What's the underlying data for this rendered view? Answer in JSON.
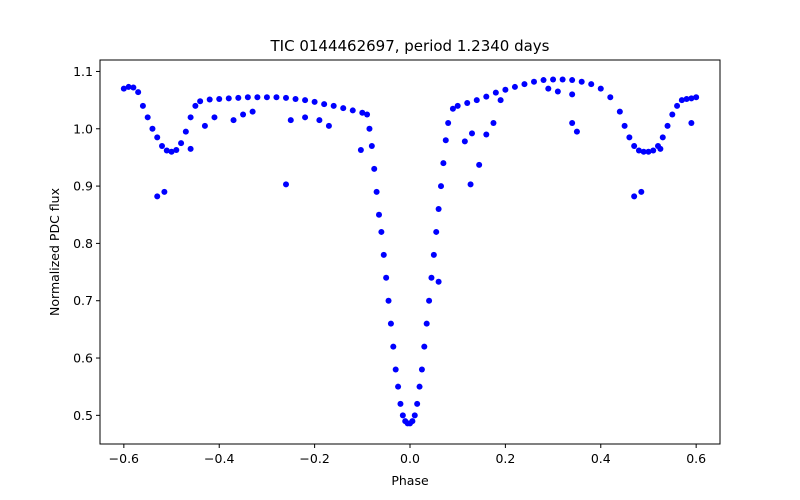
{
  "chart_data": {
    "type": "scatter",
    "title": "TIC 0144462697, period 1.2340 days",
    "xlabel": "Phase",
    "ylabel": "Normalized PDC flux",
    "xlim": [
      -0.65,
      0.65
    ],
    "ylim": [
      0.45,
      1.12
    ],
    "xticks": [
      -0.6,
      -0.4,
      -0.2,
      0.0,
      0.2,
      0.4,
      0.6
    ],
    "xtick_labels": [
      "−0.6",
      "−0.4",
      "−0.2",
      "0.0",
      "0.2",
      "0.4",
      "0.6"
    ],
    "yticks": [
      0.5,
      0.6,
      0.7,
      0.8,
      0.9,
      1.0,
      1.1
    ],
    "ytick_labels": [
      "0.5",
      "0.6",
      "0.7",
      "0.8",
      "0.9",
      "1.0",
      "1.1"
    ],
    "grid": false,
    "marker_color": "#0000ff",
    "series": [
      {
        "x": [
          -0.6,
          -0.59,
          -0.58,
          -0.57,
          -0.56,
          -0.55,
          -0.54,
          -0.53,
          -0.52,
          -0.51,
          -0.5,
          -0.49,
          -0.48,
          -0.47,
          -0.46,
          -0.45,
          -0.44,
          -0.42,
          -0.4,
          -0.38,
          -0.36,
          -0.34,
          -0.32,
          -0.3,
          -0.28,
          -0.26,
          -0.24,
          -0.22,
          -0.2,
          -0.18,
          -0.16,
          -0.14,
          -0.12,
          -0.1,
          -0.09,
          -0.085,
          -0.08,
          -0.075,
          -0.07,
          -0.065,
          -0.06,
          -0.055,
          -0.05,
          -0.045,
          -0.04,
          -0.035,
          -0.03,
          -0.025,
          -0.02,
          -0.015,
          -0.01,
          -0.005,
          0.0,
          0.005,
          0.01,
          0.015,
          0.02,
          0.025,
          0.03,
          0.035,
          0.04,
          0.045,
          0.05,
          0.055,
          0.06,
          0.065,
          0.07,
          0.075,
          0.08,
          0.09,
          0.1,
          0.12,
          0.14,
          0.16,
          0.18,
          0.2,
          0.22,
          0.24,
          0.26,
          0.28,
          0.3,
          0.32,
          0.34,
          0.36,
          0.38,
          0.4,
          0.42,
          0.44,
          0.45,
          0.46,
          0.47,
          0.48,
          0.49,
          0.5,
          0.51,
          0.52,
          0.53,
          0.54,
          0.55,
          0.56,
          0.57,
          0.58,
          0.59,
          0.6,
          -0.53,
          -0.515,
          -0.26,
          -0.103,
          0.127,
          0.145,
          0.06,
          0.47,
          0.485,
          0.34,
          0.35,
          -0.33,
          -0.35,
          -0.37,
          -0.41,
          -0.43,
          -0.46,
          -0.25,
          -0.22,
          -0.19,
          -0.17,
          0.115,
          0.13,
          0.16,
          0.175,
          0.19,
          0.29,
          0.31,
          0.34,
          0.525,
          0.59
        ],
        "y": [
          1.07,
          1.073,
          1.072,
          1.064,
          1.04,
          1.02,
          1.0,
          0.985,
          0.97,
          0.962,
          0.96,
          0.963,
          0.975,
          0.995,
          1.02,
          1.04,
          1.048,
          1.051,
          1.052,
          1.053,
          1.054,
          1.055,
          1.055,
          1.055,
          1.055,
          1.054,
          1.052,
          1.05,
          1.047,
          1.043,
          1.04,
          1.036,
          1.032,
          1.028,
          1.025,
          1.0,
          0.97,
          0.93,
          0.89,
          0.85,
          0.82,
          0.78,
          0.74,
          0.7,
          0.66,
          0.62,
          0.58,
          0.55,
          0.52,
          0.5,
          0.49,
          0.486,
          0.486,
          0.49,
          0.5,
          0.52,
          0.55,
          0.58,
          0.62,
          0.66,
          0.7,
          0.74,
          0.78,
          0.82,
          0.86,
          0.9,
          0.94,
          0.98,
          1.01,
          1.035,
          1.04,
          1.045,
          1.05,
          1.056,
          1.063,
          1.068,
          1.073,
          1.078,
          1.082,
          1.085,
          1.086,
          1.086,
          1.085,
          1.082,
          1.078,
          1.07,
          1.055,
          1.03,
          1.005,
          0.985,
          0.97,
          0.962,
          0.96,
          0.96,
          0.962,
          0.97,
          0.985,
          1.005,
          1.025,
          1.04,
          1.05,
          1.052,
          1.053,
          1.055,
          0.882,
          0.89,
          0.903,
          0.963,
          0.903,
          0.937,
          0.733,
          0.882,
          0.89,
          1.01,
          0.995,
          1.03,
          1.025,
          1.015,
          1.02,
          1.005,
          0.965,
          1.015,
          1.02,
          1.015,
          1.005,
          0.978,
          0.992,
          0.99,
          1.01,
          1.05,
          1.07,
          1.065,
          1.06,
          0.965,
          1.01
        ]
      }
    ]
  }
}
